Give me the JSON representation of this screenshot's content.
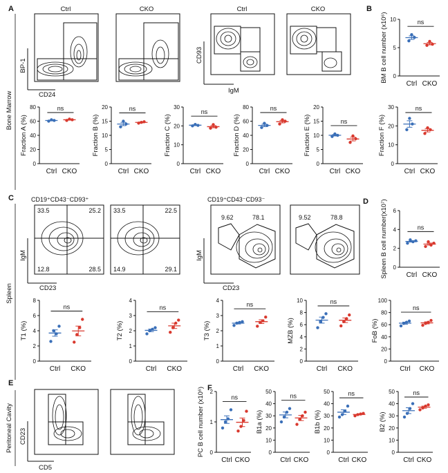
{
  "panel_labels": {
    "A": "A",
    "B": "B",
    "C": "C",
    "D": "D",
    "E": "E",
    "F": "F"
  },
  "tissues": {
    "bone_marrow": "Bone Marrow",
    "spleen": "Spleen",
    "peritoneal": "Peritoneal Cavity"
  },
  "groups": {
    "ctrl": "Ctrl",
    "cko": "CKO"
  },
  "colors": {
    "ctrl": "#3a6fb8",
    "cko": "#d9392e",
    "line": "#111111"
  },
  "flow": {
    "A_left": {
      "x_axis": "CD24",
      "y_axis": "BP-1",
      "titles": [
        "Ctrl",
        "CKO"
      ]
    },
    "A_right": {
      "x_axis": "IgM",
      "y_axis": "CD93",
      "titles": [
        "Ctrl",
        "CKO"
      ]
    },
    "C_left": {
      "x_axis": "CD23",
      "y_axis": "IgM",
      "header": "CD19⁺CD43⁻CD93⁺",
      "pct_ctrl": [
        "33.5",
        "25.2",
        "12.8",
        "28.5"
      ],
      "pct_cko": [
        "33.5",
        "22.5",
        "14.9",
        "29.1"
      ]
    },
    "C_right": {
      "x_axis": "CD23",
      "y_axis": "IgM",
      "header": "CD19⁺CD43⁻CD93⁻",
      "pct_ctrl": [
        "9.62",
        "78.1"
      ],
      "pct_cko": [
        "9.52",
        "78.8"
      ]
    },
    "E": {
      "x_axis": "CD5",
      "y_axis": "CD23"
    }
  },
  "chart_data": [
    {
      "type": "scatter",
      "id": "B",
      "ylabel": "BM B cell number (x10⁶)",
      "ylim": [
        0,
        10
      ],
      "yticks": [
        0,
        5,
        10
      ],
      "annotation": "ns",
      "series": [
        {
          "name": "Ctrl",
          "values": [
            6.2,
            7.3,
            6.8
          ]
        },
        {
          "name": "CKO",
          "values": [
            5.4,
            6.1,
            5.6
          ]
        }
      ]
    },
    {
      "type": "scatter",
      "id": "FracA",
      "ylabel": "Fraction A (%)",
      "ylim": [
        0,
        80
      ],
      "yticks": [
        0,
        20,
        40,
        60,
        80
      ],
      "annotation": "ns",
      "series": [
        {
          "name": "Ctrl",
          "values": [
            60,
            62,
            61
          ]
        },
        {
          "name": "CKO",
          "values": [
            61,
            63,
            62
          ]
        }
      ]
    },
    {
      "type": "scatter",
      "id": "FracB",
      "ylabel": "Fraction B (%)",
      "ylim": [
        0,
        20
      ],
      "yticks": [
        0,
        5,
        10,
        15,
        20
      ],
      "annotation": "ns",
      "series": [
        {
          "name": "Ctrl",
          "values": [
            13.0,
            15.0,
            14.0
          ]
        },
        {
          "name": "CKO",
          "values": [
            14.3,
            14.6,
            14.8
          ]
        }
      ]
    },
    {
      "type": "scatter",
      "id": "FracC",
      "ylabel": "Fraction C (%)",
      "ylim": [
        0,
        30
      ],
      "yticks": [
        0,
        10,
        20,
        30
      ],
      "annotation": "ns",
      "series": [
        {
          "name": "Ctrl",
          "values": [
            20,
            20.8,
            20.3
          ]
        },
        {
          "name": "CKO",
          "values": [
            18.8,
            20.7,
            19.3
          ]
        }
      ]
    },
    {
      "type": "scatter",
      "id": "FracD",
      "ylabel": "Fraction D (%)",
      "ylim": [
        0,
        80
      ],
      "yticks": [
        0,
        20,
        40,
        60,
        80
      ],
      "annotation": "ns",
      "series": [
        {
          "name": "Ctrl",
          "values": [
            51,
            57,
            54
          ]
        },
        {
          "name": "CKO",
          "values": [
            56,
            62,
            60
          ]
        }
      ]
    },
    {
      "type": "scatter",
      "id": "FracE",
      "ylabel": "Fraction E (%)",
      "ylim": [
        0,
        20
      ],
      "yticks": [
        0,
        5,
        10,
        15,
        20
      ],
      "annotation": "ns",
      "series": [
        {
          "name": "Ctrl",
          "values": [
            9.6,
            10.5,
            10.0
          ]
        },
        {
          "name": "CKO",
          "values": [
            7.5,
            9.8,
            8.8
          ]
        }
      ]
    },
    {
      "type": "scatter",
      "id": "FracF",
      "ylabel": "Fraction F (%)",
      "ylim": [
        0,
        30
      ],
      "yticks": [
        0,
        10,
        20,
        30
      ],
      "annotation": "ns",
      "series": [
        {
          "name": "Ctrl",
          "values": [
            18,
            24,
            21
          ]
        },
        {
          "name": "CKO",
          "values": [
            16,
            19,
            18
          ]
        }
      ]
    },
    {
      "type": "scatter",
      "id": "D",
      "ylabel": "Spleen B cell number(x10⁷)",
      "ylim": [
        0,
        6
      ],
      "yticks": [
        0,
        2,
        4,
        6
      ],
      "annotation": "ns",
      "series": [
        {
          "name": "Ctrl",
          "values": [
            2.55,
            2.9,
            2.7,
            2.8
          ]
        },
        {
          "name": "CKO",
          "values": [
            2.2,
            2.7,
            2.35,
            2.55
          ]
        }
      ]
    },
    {
      "type": "scatter",
      "id": "T1",
      "ylabel": "T1 (%)",
      "ylim": [
        0,
        8
      ],
      "yticks": [
        0,
        2,
        4,
        6,
        8
      ],
      "annotation": "ns",
      "series": [
        {
          "name": "Ctrl",
          "values": [
            2.6,
            4.0,
            3.6,
            4.6
          ]
        },
        {
          "name": "CKO",
          "values": [
            2.5,
            3.5,
            4.4,
            5.5
          ]
        }
      ]
    },
    {
      "type": "scatter",
      "id": "T2",
      "ylabel": "T2 (%)",
      "ylim": [
        0,
        4
      ],
      "yticks": [
        0,
        1,
        2,
        3,
        4
      ],
      "annotation": "ns",
      "series": [
        {
          "name": "Ctrl",
          "values": [
            1.8,
            2.0,
            2.1,
            2.2
          ]
        },
        {
          "name": "CKO",
          "values": [
            1.9,
            2.2,
            2.5,
            2.7
          ]
        }
      ]
    },
    {
      "type": "scatter",
      "id": "T3",
      "ylabel": "T3 (%)",
      "ylim": [
        0,
        4
      ],
      "yticks": [
        0,
        1,
        2,
        3,
        4
      ],
      "annotation": "ns",
      "series": [
        {
          "name": "Ctrl",
          "values": [
            2.35,
            2.5,
            2.55,
            2.6
          ]
        },
        {
          "name": "CKO",
          "values": [
            2.3,
            2.55,
            2.65,
            2.9
          ]
        }
      ]
    },
    {
      "type": "scatter",
      "id": "MZB",
      "ylabel": "MZB (%)",
      "ylim": [
        0,
        10
      ],
      "yticks": [
        0,
        2,
        4,
        6,
        8,
        10
      ],
      "annotation": "ns",
      "series": [
        {
          "name": "Ctrl",
          "values": [
            5.5,
            6.5,
            7.2,
            7.8
          ]
        },
        {
          "name": "CKO",
          "values": [
            5.8,
            6.5,
            7.0,
            7.6
          ]
        }
      ]
    },
    {
      "type": "scatter",
      "id": "FoB",
      "ylabel": "FoB (%)",
      "ylim": [
        0,
        100
      ],
      "yticks": [
        0,
        20,
        40,
        60,
        80,
        100
      ],
      "annotation": "ns",
      "series": [
        {
          "name": "Ctrl",
          "values": [
            58,
            62,
            64,
            66
          ]
        },
        {
          "name": "CKO",
          "values": [
            59,
            62,
            64,
            67
          ]
        }
      ]
    },
    {
      "type": "scatter",
      "id": "PCB",
      "ylabel": "PC B cell number (x10⁶)",
      "ylim": [
        0,
        2
      ],
      "yticks": [
        0,
        1,
        2
      ],
      "annotation": "ns",
      "series": [
        {
          "name": "Ctrl",
          "values": [
            0.8,
            1.0,
            1.1,
            1.4
          ]
        },
        {
          "name": "CKO",
          "values": [
            0.7,
            0.85,
            1.05,
            1.35
          ]
        }
      ]
    },
    {
      "type": "scatter",
      "id": "B1a",
      "ylabel": "B1a (%)",
      "ylim": [
        0,
        50
      ],
      "yticks": [
        0,
        10,
        20,
        30,
        40,
        50
      ],
      "annotation": "ns",
      "series": [
        {
          "name": "Ctrl",
          "values": [
            25,
            29,
            33,
            36
          ]
        },
        {
          "name": "CKO",
          "values": [
            23,
            27,
            30,
            33
          ]
        }
      ]
    },
    {
      "type": "scatter",
      "id": "B1b",
      "ylabel": "B1b (%)",
      "ylim": [
        0,
        50
      ],
      "yticks": [
        0,
        10,
        20,
        30,
        40,
        50
      ],
      "annotation": "ns",
      "series": [
        {
          "name": "Ctrl",
          "values": [
            29,
            31,
            34,
            38
          ]
        },
        {
          "name": "CKO",
          "values": [
            30,
            31,
            31.5,
            32
          ]
        }
      ]
    },
    {
      "type": "scatter",
      "id": "B2",
      "ylabel": "B2 (%)",
      "ylim": [
        0,
        50
      ],
      "yticks": [
        0,
        10,
        20,
        30,
        40,
        50
      ],
      "annotation": "ns",
      "series": [
        {
          "name": "Ctrl",
          "values": [
            29,
            32,
            36,
            40
          ]
        },
        {
          "name": "CKO",
          "values": [
            35,
            36.5,
            38,
            39
          ]
        }
      ]
    }
  ]
}
